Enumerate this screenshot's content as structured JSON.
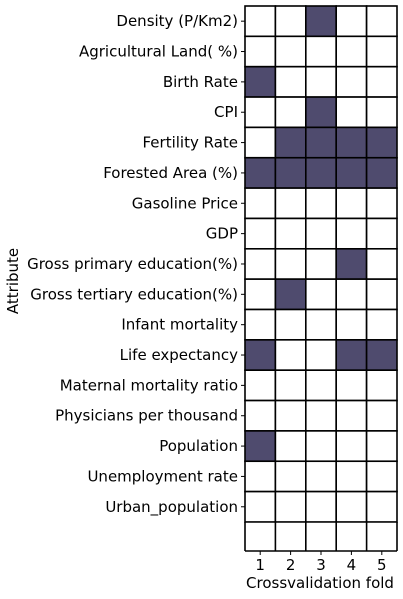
{
  "chart_data": {
    "type": "heatmap",
    "ylabel": "Attribute",
    "xlabel": "Crossvalidation fold",
    "x": [
      "1",
      "2",
      "3",
      "4",
      "5"
    ],
    "y": [
      "Density (P/Km2)",
      "Agricultural Land( %)",
      "Birth Rate",
      "CPI",
      "Fertility Rate",
      "Forested Area (%)",
      "Gasoline Price",
      "GDP",
      "Gross primary education(%)",
      "Gross tertiary education(%)",
      "Infant mortality",
      "Life expectancy",
      "Maternal mortality ratio",
      "Physicians per thousand",
      "Population",
      "Unemployment rate",
      "Urban_population"
    ],
    "values": [
      [
        0,
        0,
        1,
        0,
        0
      ],
      [
        0,
        0,
        0,
        0,
        0
      ],
      [
        1,
        0,
        0,
        0,
        0
      ],
      [
        0,
        0,
        1,
        0,
        0
      ],
      [
        0,
        1,
        1,
        1,
        1
      ],
      [
        1,
        1,
        1,
        1,
        1
      ],
      [
        0,
        0,
        0,
        0,
        0
      ],
      [
        0,
        0,
        0,
        0,
        0
      ],
      [
        0,
        0,
        0,
        1,
        0
      ],
      [
        0,
        1,
        0,
        0,
        0
      ],
      [
        0,
        0,
        0,
        0,
        0
      ],
      [
        1,
        0,
        0,
        1,
        1
      ],
      [
        0,
        0,
        0,
        0,
        0
      ],
      [
        0,
        0,
        0,
        0,
        0
      ],
      [
        1,
        0,
        0,
        0,
        0
      ],
      [
        0,
        0,
        0,
        0,
        0
      ],
      [
        0,
        0,
        0,
        0,
        0
      ]
    ],
    "colors": {
      "selected": "#4f4b6e",
      "unselected": "#ffffff",
      "edge": "#000000"
    },
    "grid": true,
    "legend": "none"
  }
}
